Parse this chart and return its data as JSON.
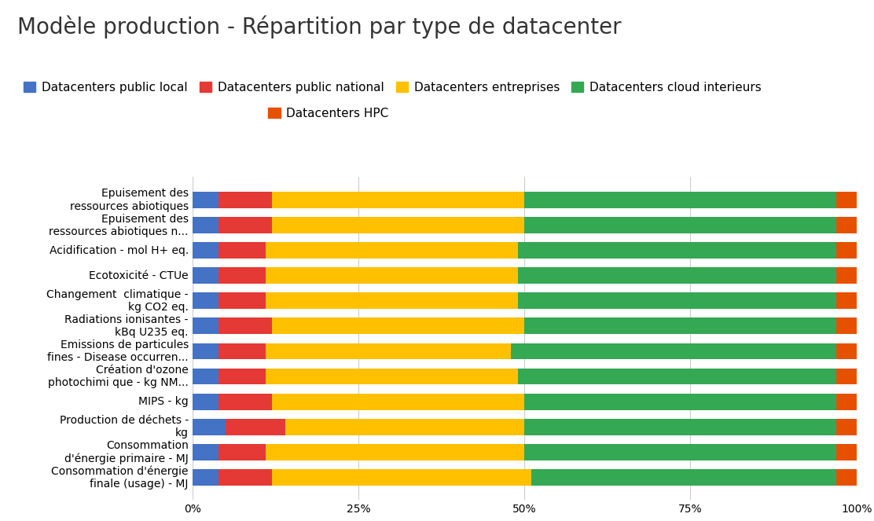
{
  "title": "Modèle production - Répartition par type de datacenter",
  "categories": [
    "Epuisement des\nressources abiotiques",
    "Epuisement des\nressources abiotiques n...",
    "Acidification - mol H+ eq.",
    "Ecotoxicité - CTUe",
    "Changement  climatique -\nkg CO2 eq.",
    "Radiations ionisantes -\nkBq U235 eq.",
    "Emissions de particules\nfines - Disease occurren...",
    "Création d'ozone\nphotochimi que - kg NM...",
    "MIPS - kg",
    "Production de déchets -\nkg",
    "Consommation\nd'énergie primaire - MJ",
    "Consommation d'énergie\nfinale (usage) - MJ"
  ],
  "series": {
    "Datacenters public local": [
      4,
      4,
      4,
      4,
      4,
      4,
      4,
      4,
      4,
      5,
      4,
      4
    ],
    "Datacenters public national": [
      8,
      8,
      7,
      7,
      7,
      8,
      7,
      7,
      8,
      9,
      7,
      8
    ],
    "Datacenters entreprises": [
      38,
      38,
      38,
      38,
      38,
      38,
      37,
      38,
      38,
      36,
      39,
      39
    ],
    "Datacenters cloud interieurs": [
      47,
      47,
      48,
      48,
      48,
      47,
      49,
      48,
      47,
      47,
      47,
      46
    ],
    "Datacenters HPC": [
      3,
      3,
      3,
      3,
      3,
      3,
      3,
      3,
      3,
      3,
      3,
      3
    ]
  },
  "colors": {
    "Datacenters public local": "#4472C4",
    "Datacenters public national": "#E53935",
    "Datacenters entreprises": "#FFC000",
    "Datacenters cloud interieurs": "#34A853",
    "Datacenters HPC": "#E65100"
  },
  "legend_order": [
    "Datacenters public local",
    "Datacenters public national",
    "Datacenters entreprises",
    "Datacenters cloud interieurs",
    "Datacenters HPC"
  ],
  "background_color": "#ffffff",
  "title_fontsize": 20,
  "tick_fontsize": 10,
  "legend_fontsize": 11
}
